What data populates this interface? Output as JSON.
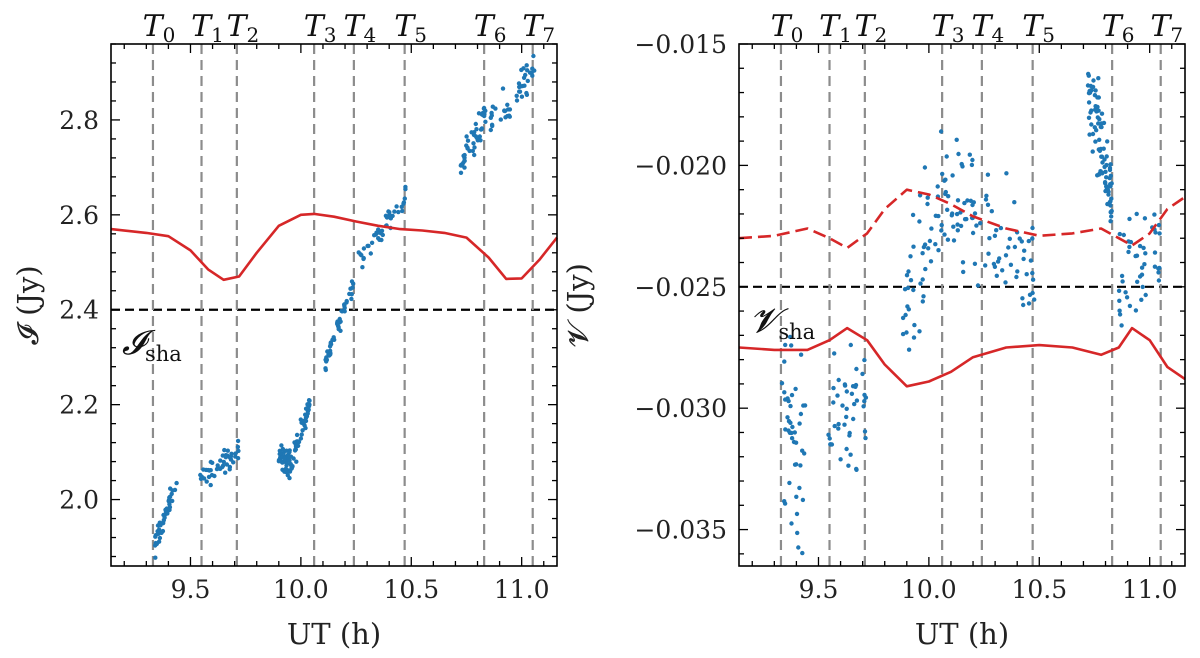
{
  "chart_data": [
    {
      "type": "scatter",
      "xlabel": "UT (h)",
      "ylabel": "𝓘 (Jy)",
      "xlim": [
        9.14,
        11.16
      ],
      "ylim": [
        1.86,
        2.96
      ],
      "xticks": [
        "9.5",
        "10.0",
        "10.5",
        "11.0"
      ],
      "yticks": [
        "2.0",
        "2.2",
        "2.4",
        "2.6",
        "2.8"
      ],
      "epochs": [
        {
          "name": "T",
          "sub": "0",
          "x": 9.33
        },
        {
          "name": "T",
          "sub": "1",
          "x": 9.55
        },
        {
          "name": "T",
          "sub": "2",
          "x": 9.71
        },
        {
          "name": "T",
          "sub": "3",
          "x": 10.06
        },
        {
          "name": "T",
          "sub": "4",
          "x": 10.24
        },
        {
          "name": "T",
          "sub": "5",
          "x": 10.47
        },
        {
          "name": "T",
          "sub": "6",
          "x": 10.83
        },
        {
          "name": "T",
          "sub": "7",
          "x": 11.05
        }
      ],
      "reference_line": {
        "y": 2.4,
        "label": "𝓘",
        "sub": "sha"
      },
      "data_segments": [
        {
          "x": [
            9.33,
            9.44
          ],
          "y": [
            1.89,
            2.04
          ],
          "spread": 0.012
        },
        {
          "x": [
            9.54,
            9.72
          ],
          "y": [
            2.035,
            2.105
          ],
          "spread": 0.012
        },
        {
          "x": [
            9.9,
            9.96
          ],
          "y": [
            2.1,
            2.07
          ],
          "spread": 0.015
        },
        {
          "x": [
            9.96,
            10.04
          ],
          "y": [
            2.08,
            2.2
          ],
          "spread": 0.012
        },
        {
          "x": [
            10.11,
            10.24
          ],
          "y": [
            2.29,
            2.46
          ],
          "spread": 0.01
        },
        {
          "x": [
            10.26,
            10.48
          ],
          "y": [
            2.5,
            2.64
          ],
          "spread": 0.012
        },
        {
          "x": [
            10.72,
            10.84
          ],
          "y": [
            2.7,
            2.82
          ],
          "spread": 0.015
        },
        {
          "x": [
            10.84,
            11.06
          ],
          "y": [
            2.79,
            2.9
          ],
          "spread": 0.02
        }
      ],
      "model_curve": {
        "x": [
          9.14,
          9.3,
          9.4,
          9.5,
          9.58,
          9.65,
          9.72,
          9.8,
          9.9,
          10.0,
          10.06,
          10.15,
          10.25,
          10.35,
          10.45,
          10.55,
          10.65,
          10.75,
          10.85,
          10.93,
          11.0,
          11.08,
          11.16
        ],
        "y": [
          2.57,
          2.562,
          2.555,
          2.525,
          2.485,
          2.463,
          2.47,
          2.52,
          2.577,
          2.6,
          2.602,
          2.596,
          2.586,
          2.577,
          2.57,
          2.567,
          2.562,
          2.552,
          2.51,
          2.465,
          2.466,
          2.505,
          2.552
        ]
      }
    },
    {
      "type": "scatter",
      "xlabel": "UT (h)",
      "ylabel": "𝓥 (Jy)",
      "xlim": [
        9.14,
        11.16
      ],
      "ylim": [
        -0.0365,
        -0.015
      ],
      "xticks": [
        "9.5",
        "10.0",
        "10.5",
        "11.0"
      ],
      "yticks": [
        "−0.015",
        "−0.020",
        "−0.025",
        "−0.030",
        "−0.035"
      ],
      "ytick_values": [
        -0.015,
        -0.02,
        -0.025,
        -0.03,
        -0.035
      ],
      "epochs": [
        {
          "name": "T",
          "sub": "0",
          "x": 9.33
        },
        {
          "name": "T",
          "sub": "1",
          "x": 9.55
        },
        {
          "name": "T",
          "sub": "2",
          "x": 9.71
        },
        {
          "name": "T",
          "sub": "3",
          "x": 10.06
        },
        {
          "name": "T",
          "sub": "4",
          "x": 10.24
        },
        {
          "name": "T",
          "sub": "5",
          "x": 10.47
        },
        {
          "name": "T",
          "sub": "6",
          "x": 10.83
        },
        {
          "name": "T",
          "sub": "7",
          "x": 11.05
        }
      ],
      "reference_line": {
        "y": -0.025,
        "label": "𝓥",
        "sub": "sha"
      },
      "data_segments": [
        {
          "x": [
            9.33,
            9.44
          ],
          "y": [
            -0.0295,
            -0.0325
          ],
          "spread": 0.0018
        },
        {
          "x": [
            9.54,
            9.72
          ],
          "y": [
            -0.0305,
            -0.0295
          ],
          "spread": 0.0013
        },
        {
          "x": [
            9.88,
            10.06
          ],
          "y": [
            -0.027,
            -0.021
          ],
          "spread": 0.0015
        },
        {
          "x": [
            10.06,
            10.24
          ],
          "y": [
            -0.021,
            -0.0225
          ],
          "spread": 0.0012
        },
        {
          "x": [
            10.24,
            10.48
          ],
          "y": [
            -0.0225,
            -0.0245
          ],
          "spread": 0.0012
        },
        {
          "x": [
            10.72,
            10.78
          ],
          "y": [
            -0.0175,
            -0.019
          ],
          "spread": 0.001
        },
        {
          "x": [
            10.78,
            10.83
          ],
          "y": [
            -0.0195,
            -0.0215
          ],
          "spread": 0.0008
        },
        {
          "x": [
            10.86,
            11.05
          ],
          "y": [
            -0.025,
            -0.0235
          ],
          "spread": 0.0012
        }
      ],
      "model_curve_solid": {
        "x": [
          9.14,
          9.3,
          9.45,
          9.55,
          9.63,
          9.72,
          9.8,
          9.9,
          10.0,
          10.1,
          10.2,
          10.35,
          10.5,
          10.65,
          10.78,
          10.86,
          10.92,
          11.0,
          11.08,
          11.16
        ],
        "y": [
          -0.0275,
          -0.0276,
          -0.0276,
          -0.0272,
          -0.0267,
          -0.0272,
          -0.0282,
          -0.0291,
          -0.0289,
          -0.0285,
          -0.0279,
          -0.0275,
          -0.0274,
          -0.0275,
          -0.0278,
          -0.0275,
          -0.0267,
          -0.0272,
          -0.0283,
          -0.0288
        ]
      },
      "model_curve_dashed": {
        "x": [
          9.14,
          9.3,
          9.45,
          9.55,
          9.63,
          9.72,
          9.8,
          9.9,
          10.0,
          10.1,
          10.2,
          10.35,
          10.5,
          10.65,
          10.78,
          10.86,
          10.92,
          11.0,
          11.08,
          11.16
        ],
        "y": [
          -0.023,
          -0.0229,
          -0.0226,
          -0.023,
          -0.0234,
          -0.0228,
          -0.0218,
          -0.021,
          -0.0212,
          -0.0216,
          -0.0221,
          -0.0226,
          -0.0229,
          -0.0228,
          -0.0226,
          -0.023,
          -0.0233,
          -0.0228,
          -0.0218,
          -0.0213
        ]
      }
    }
  ],
  "colors": {
    "points": "#1f77b4",
    "model": "#d62728",
    "epoch_line": "#8c8c8c",
    "reference": "#000000"
  }
}
